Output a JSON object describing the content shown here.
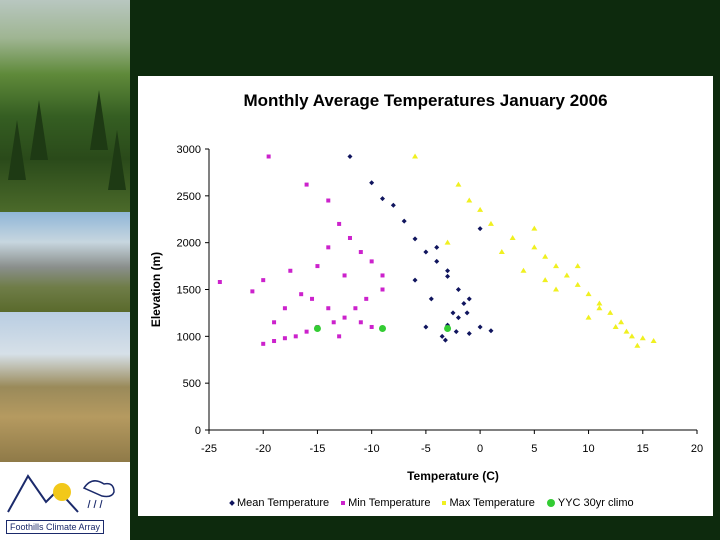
{
  "sidebar": {
    "logo_text": "Foothills Climate Array"
  },
  "chart_data": {
    "type": "scatter",
    "title": "Monthly Average Temperatures January 2006",
    "xlabel": "Temperature (C)",
    "ylabel": "Elevation (m)",
    "xlim": [
      -25,
      20
    ],
    "ylim": [
      0,
      3000
    ],
    "xticks": [
      "-25",
      "-20",
      "-15",
      "-10",
      "-5",
      "0",
      "5",
      "10",
      "15",
      "20"
    ],
    "yticks": [
      "0",
      "500",
      "1000",
      "1500",
      "2000",
      "2500",
      "3000"
    ],
    "legend_position": "bottom",
    "series": [
      {
        "name": "Mean Temperature",
        "color": "#10155e",
        "marker": "diamond",
        "points": [
          [
            -12,
            2920
          ],
          [
            -10,
            2640
          ],
          [
            -9,
            2470
          ],
          [
            -8,
            2400
          ],
          [
            -7,
            2230
          ],
          [
            -6,
            2040
          ],
          [
            -5,
            1900
          ],
          [
            -4,
            1800
          ],
          [
            -3,
            1640
          ],
          [
            -2,
            1500
          ],
          [
            -1.5,
            1350
          ],
          [
            -2.5,
            1250
          ],
          [
            -3,
            1120
          ],
          [
            -3.5,
            1000
          ],
          [
            -3.2,
            960
          ],
          [
            -1,
            1030
          ],
          [
            0,
            1100
          ],
          [
            1,
            1060
          ],
          [
            -5,
            1100
          ],
          [
            -6,
            1600
          ],
          [
            -4.5,
            1400
          ],
          [
            -2,
            1200
          ],
          [
            -3,
            1700
          ],
          [
            -4,
            1950
          ],
          [
            -1,
            1400
          ],
          [
            0,
            2150
          ],
          [
            -2.2,
            1050
          ],
          [
            -1.2,
            1250
          ]
        ]
      },
      {
        "name": "Min Temperature",
        "color": "#cc22cc",
        "marker": "square",
        "points": [
          [
            -24,
            1580
          ],
          [
            -19.5,
            2920
          ],
          [
            -16,
            2620
          ],
          [
            -14,
            2450
          ],
          [
            -13,
            2200
          ],
          [
            -12,
            2050
          ],
          [
            -11,
            1900
          ],
          [
            -10,
            1800
          ],
          [
            -9,
            1650
          ],
          [
            -10.5,
            1400
          ],
          [
            -11.5,
            1300
          ],
          [
            -12.5,
            1200
          ],
          [
            -13.5,
            1150
          ],
          [
            -15,
            1100
          ],
          [
            -16,
            1050
          ],
          [
            -17,
            1000
          ],
          [
            -18,
            980
          ],
          [
            -19,
            950
          ],
          [
            -20,
            920
          ],
          [
            -21,
            1480
          ],
          [
            -20,
            1600
          ],
          [
            -18,
            1300
          ],
          [
            -16.5,
            1450
          ],
          [
            -15,
            1750
          ],
          [
            -14,
            1950
          ],
          [
            -12.5,
            1650
          ],
          [
            -11,
            1150
          ],
          [
            -10,
            1100
          ],
          [
            -9,
            1500
          ],
          [
            -13,
            1000
          ],
          [
            -15.5,
            1400
          ],
          [
            -14,
            1300
          ],
          [
            -17.5,
            1700
          ],
          [
            -19,
            1150
          ]
        ]
      },
      {
        "name": "Max Temperature",
        "color": "#f0f020",
        "marker": "triangle",
        "points": [
          [
            -6,
            2920
          ],
          [
            -2,
            2620
          ],
          [
            -1,
            2450
          ],
          [
            0,
            2350
          ],
          [
            1,
            2200
          ],
          [
            3,
            2050
          ],
          [
            5,
            1950
          ],
          [
            6,
            1850
          ],
          [
            7,
            1750
          ],
          [
            8,
            1650
          ],
          [
            9,
            1550
          ],
          [
            10,
            1450
          ],
          [
            11,
            1350
          ],
          [
            12,
            1250
          ],
          [
            13,
            1150
          ],
          [
            13.5,
            1050
          ],
          [
            14,
            1000
          ],
          [
            15,
            980
          ],
          [
            16,
            950
          ],
          [
            -3,
            2000
          ],
          [
            2,
            1900
          ],
          [
            4,
            1700
          ],
          [
            6,
            1600
          ],
          [
            10,
            1200
          ],
          [
            12.5,
            1100
          ],
          [
            14.5,
            900
          ],
          [
            11,
            1300
          ],
          [
            9,
            1750
          ],
          [
            7,
            1500
          ],
          [
            5,
            2150
          ]
        ]
      },
      {
        "name": "YYC 30yr climo",
        "color": "#33cc33",
        "marker": "circle",
        "points": [
          [
            -15,
            1084
          ],
          [
            -9,
            1084
          ],
          [
            -3,
            1084
          ]
        ]
      }
    ]
  }
}
